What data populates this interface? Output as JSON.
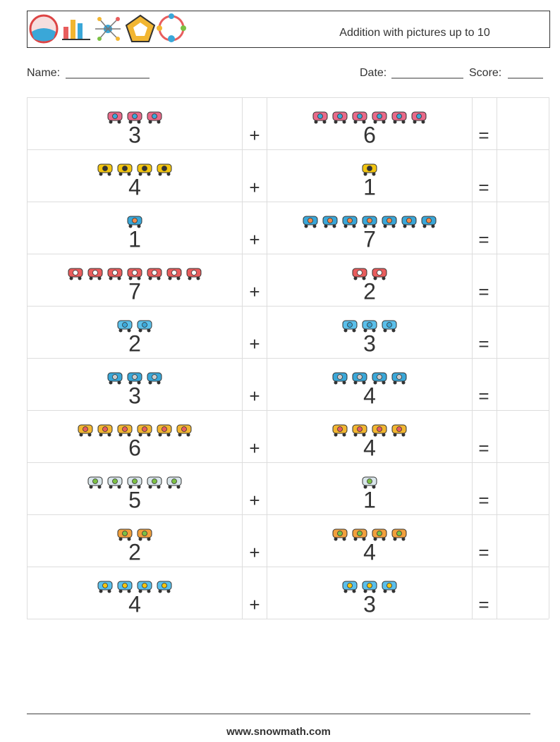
{
  "header": {
    "title": "Addition with pictures up to 10"
  },
  "fields": {
    "name": "Name:",
    "date": "Date:",
    "score": "Score:"
  },
  "operators": {
    "plus": "+",
    "equals": "="
  },
  "problems": [
    {
      "a": 3,
      "b": 6
    },
    {
      "a": 4,
      "b": 1
    },
    {
      "a": 1,
      "b": 7
    },
    {
      "a": 7,
      "b": 2
    },
    {
      "a": 2,
      "b": 3
    },
    {
      "a": 3,
      "b": 4
    },
    {
      "a": 6,
      "b": 4
    },
    {
      "a": 5,
      "b": 1
    },
    {
      "a": 2,
      "b": 4
    },
    {
      "a": 4,
      "b": 3
    }
  ],
  "footer": "www.snowmath.com"
}
